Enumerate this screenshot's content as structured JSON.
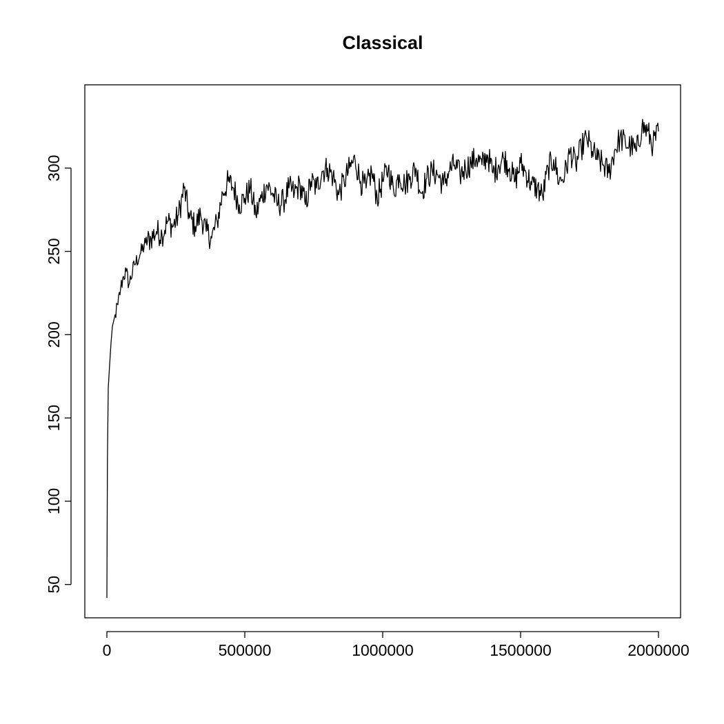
{
  "chart_data": {
    "type": "line",
    "title": "Classical",
    "xlabel": "",
    "ylabel": "",
    "xlim": [
      -80000,
      2080000
    ],
    "ylim": [
      30,
      350
    ],
    "x_ticks": [
      0,
      500000,
      1000000,
      1500000,
      2000000
    ],
    "x_tick_labels": [
      "0",
      "500000",
      "1000000",
      "1500000",
      "2000000"
    ],
    "y_ticks": [
      50,
      100,
      150,
      200,
      250,
      300
    ],
    "y_tick_labels": [
      "50",
      "100",
      "150",
      "200",
      "250",
      "300"
    ],
    "grid": false,
    "legend": "none",
    "line_color": "#000000",
    "series": [
      {
        "x": [
          0,
          2000,
          5000,
          10000,
          15000,
          20000,
          30000,
          40000,
          50000,
          60000,
          70000,
          80000,
          100000,
          120000,
          140000,
          160000,
          180000,
          200000,
          220000,
          240000,
          260000,
          280000,
          300000,
          320000,
          340000,
          360000,
          380000,
          400000,
          420000,
          440000,
          460000,
          480000,
          500000,
          520000,
          540000,
          560000,
          580000,
          600000,
          620000,
          640000,
          660000,
          680000,
          700000,
          720000,
          740000,
          760000,
          780000,
          800000,
          820000,
          840000,
          860000,
          880000,
          900000,
          920000,
          940000,
          960000,
          980000,
          1000000,
          1020000,
          1040000,
          1060000,
          1080000,
          1100000,
          1120000,
          1140000,
          1160000,
          1180000,
          1200000,
          1220000,
          1240000,
          1260000,
          1280000,
          1300000,
          1320000,
          1340000,
          1360000,
          1380000,
          1400000,
          1420000,
          1440000,
          1460000,
          1480000,
          1500000,
          1520000,
          1540000,
          1560000,
          1580000,
          1600000,
          1620000,
          1640000,
          1660000,
          1680000,
          1700000,
          1720000,
          1740000,
          1760000,
          1780000,
          1800000,
          1820000,
          1840000,
          1860000,
          1880000,
          1900000,
          1920000,
          1940000,
          1960000,
          1980000,
          2000000
        ],
        "y": [
          42,
          125,
          168,
          182,
          195,
          205,
          212,
          218,
          228,
          235,
          238,
          230,
          242,
          248,
          255,
          258,
          262,
          260,
          268,
          265,
          272,
          288,
          270,
          265,
          272,
          262,
          258,
          268,
          285,
          292,
          288,
          278,
          282,
          288,
          272,
          282,
          290,
          285,
          278,
          280,
          288,
          285,
          290,
          278,
          292,
          288,
          298,
          300,
          295,
          284,
          292,
          300,
          305,
          292,
          288,
          298,
          282,
          292,
          300,
          286,
          296,
          290,
          295,
          300,
          285,
          294,
          298,
          296,
          290,
          298,
          302,
          296,
          300,
          303,
          306,
          302,
          308,
          297,
          302,
          306,
          300,
          292,
          303,
          297,
          290,
          288,
          283,
          300,
          305,
          292,
          296,
          310,
          302,
          312,
          318,
          310,
          305,
          302,
          297,
          310,
          318,
          315,
          313,
          310,
          325,
          322,
          314,
          322
        ]
      }
    ]
  }
}
